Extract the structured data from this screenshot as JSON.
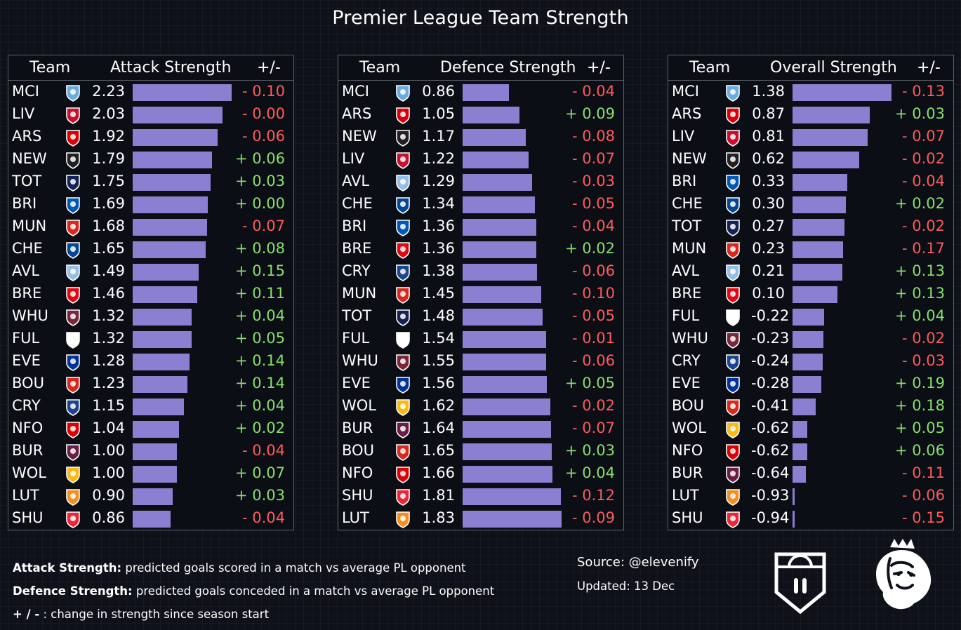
{
  "title": "Premier League Team Strength",
  "colors": {
    "bar": "#8a7fd0",
    "positive": "#86e16b",
    "negative": "#ff5b5b",
    "border": "#5b6068",
    "background": "#0e1119"
  },
  "chart_data": [
    {
      "type": "bar",
      "headers": {
        "team": "Team",
        "metric": "Attack Strength",
        "change": "+/-"
      },
      "rows": [
        {
          "team": "MCI",
          "value": "2.23",
          "change": "- 0.10"
        },
        {
          "team": "LIV",
          "value": "2.03",
          "change": "- 0.00"
        },
        {
          "team": "ARS",
          "value": "1.92",
          "change": "- 0.06"
        },
        {
          "team": "NEW",
          "value": "1.79",
          "change": "+ 0.06"
        },
        {
          "team": "TOT",
          "value": "1.75",
          "change": "+ 0.03"
        },
        {
          "team": "BRI",
          "value": "1.69",
          "change": "+ 0.00"
        },
        {
          "team": "MUN",
          "value": "1.68",
          "change": "- 0.07"
        },
        {
          "team": "CHE",
          "value": "1.65",
          "change": "+ 0.08"
        },
        {
          "team": "AVL",
          "value": "1.49",
          "change": "+ 0.15"
        },
        {
          "team": "BRE",
          "value": "1.46",
          "change": "+ 0.11"
        },
        {
          "team": "WHU",
          "value": "1.32",
          "change": "+ 0.04"
        },
        {
          "team": "FUL",
          "value": "1.32",
          "change": "+ 0.05"
        },
        {
          "team": "EVE",
          "value": "1.28",
          "change": "+ 0.14"
        },
        {
          "team": "BOU",
          "value": "1.23",
          "change": "+ 0.14"
        },
        {
          "team": "CRY",
          "value": "1.15",
          "change": "+ 0.04"
        },
        {
          "team": "NFO",
          "value": "1.04",
          "change": "+ 0.02"
        },
        {
          "team": "BUR",
          "value": "1.00",
          "change": "- 0.04"
        },
        {
          "team": "WOL",
          "value": "1.00",
          "change": "+ 0.07"
        },
        {
          "team": "LUT",
          "value": "0.90",
          "change": "+ 0.03"
        },
        {
          "team": "SHU",
          "value": "0.86",
          "change": "- 0.04"
        }
      ]
    },
    {
      "type": "bar",
      "headers": {
        "team": "Team",
        "metric": "Defence Strength",
        "change": "+/-"
      },
      "rows": [
        {
          "team": "MCI",
          "value": "0.86",
          "change": "- 0.04"
        },
        {
          "team": "ARS",
          "value": "1.05",
          "change": "+ 0.09"
        },
        {
          "team": "NEW",
          "value": "1.17",
          "change": "- 0.08"
        },
        {
          "team": "LIV",
          "value": "1.22",
          "change": "- 0.07"
        },
        {
          "team": "AVL",
          "value": "1.29",
          "change": "- 0.03"
        },
        {
          "team": "CHE",
          "value": "1.34",
          "change": "- 0.05"
        },
        {
          "team": "BRI",
          "value": "1.36",
          "change": "- 0.04"
        },
        {
          "team": "BRE",
          "value": "1.36",
          "change": "+ 0.02"
        },
        {
          "team": "CRY",
          "value": "1.38",
          "change": "- 0.06"
        },
        {
          "team": "MUN",
          "value": "1.45",
          "change": "- 0.10"
        },
        {
          "team": "TOT",
          "value": "1.48",
          "change": "- 0.05"
        },
        {
          "team": "FUL",
          "value": "1.54",
          "change": "- 0.01"
        },
        {
          "team": "WHU",
          "value": "1.55",
          "change": "- 0.06"
        },
        {
          "team": "EVE",
          "value": "1.56",
          "change": "+ 0.05"
        },
        {
          "team": "WOL",
          "value": "1.62",
          "change": "- 0.02"
        },
        {
          "team": "BUR",
          "value": "1.64",
          "change": "- 0.07"
        },
        {
          "team": "BOU",
          "value": "1.65",
          "change": "+ 0.03"
        },
        {
          "team": "NFO",
          "value": "1.66",
          "change": "+ 0.04"
        },
        {
          "team": "SHU",
          "value": "1.81",
          "change": "- 0.12"
        },
        {
          "team": "LUT",
          "value": "1.83",
          "change": "- 0.09"
        }
      ]
    },
    {
      "type": "bar",
      "headers": {
        "team": "Team",
        "metric": "Overall Strength",
        "change": "+/-"
      },
      "rows": [
        {
          "team": "MCI",
          "value": "1.38",
          "change": "- 0.13"
        },
        {
          "team": "ARS",
          "value": "0.87",
          "change": "+ 0.03"
        },
        {
          "team": "LIV",
          "value": "0.81",
          "change": "- 0.07"
        },
        {
          "team": "NEW",
          "value": "0.62",
          "change": "- 0.02"
        },
        {
          "team": "BRI",
          "value": "0.33",
          "change": "- 0.04"
        },
        {
          "team": "CHE",
          "value": "0.30",
          "change": "+ 0.02"
        },
        {
          "team": "TOT",
          "value": "0.27",
          "change": "- 0.02"
        },
        {
          "team": "MUN",
          "value": "0.23",
          "change": "- 0.17"
        },
        {
          "team": "AVL",
          "value": "0.21",
          "change": "+ 0.13"
        },
        {
          "team": "BRE",
          "value": "0.10",
          "change": "+ 0.13"
        },
        {
          "team": "FUL",
          "value": "-0.22",
          "change": "+ 0.04"
        },
        {
          "team": "WHU",
          "value": "-0.23",
          "change": "- 0.02"
        },
        {
          "team": "CRY",
          "value": "-0.24",
          "change": "- 0.03"
        },
        {
          "team": "EVE",
          "value": "-0.28",
          "change": "+ 0.19"
        },
        {
          "team": "BOU",
          "value": "-0.41",
          "change": "+ 0.18"
        },
        {
          "team": "WOL",
          "value": "-0.62",
          "change": "+ 0.05"
        },
        {
          "team": "NFO",
          "value": "-0.62",
          "change": "+ 0.06"
        },
        {
          "team": "BUR",
          "value": "-0.64",
          "change": "- 0.11"
        },
        {
          "team": "LUT",
          "value": "-0.93",
          "change": "- 0.06"
        },
        {
          "team": "SHU",
          "value": "-0.94",
          "change": "- 0.15"
        }
      ]
    }
  ],
  "team_badges": {
    "MCI": "#6cabdd",
    "LIV": "#c8102e",
    "ARS": "#db0007",
    "NEW": "#241f20",
    "TOT": "#132257",
    "BRI": "#0057b8",
    "MUN": "#da291c",
    "CHE": "#034694",
    "AVL": "#95bfe5",
    "BRE": "#e30613",
    "WHU": "#7a263a",
    "FUL": "#ffffff",
    "EVE": "#003399",
    "BOU": "#da291c",
    "CRY": "#1b458f",
    "NFO": "#dd0000",
    "BUR": "#6c1d45",
    "WOL": "#fdb913",
    "LUT": "#f78f1e",
    "SHU": "#ee2737"
  },
  "notes": {
    "attack_label": "Attack Strength:",
    "attack_text": " predicted goals scored in a match vs average PL opponent",
    "defence_label": "Defence Strength:",
    "defence_text": " predicted goals conceded in a match vs average PL opponent",
    "change_label": "+ / -",
    "change_text": "  : change in strength since season start"
  },
  "source": "Source: @elevenify",
  "updated": "Updated: 13 Dec",
  "logos": [
    "elevenify-shield-logo",
    "premier-league-lion-logo"
  ]
}
